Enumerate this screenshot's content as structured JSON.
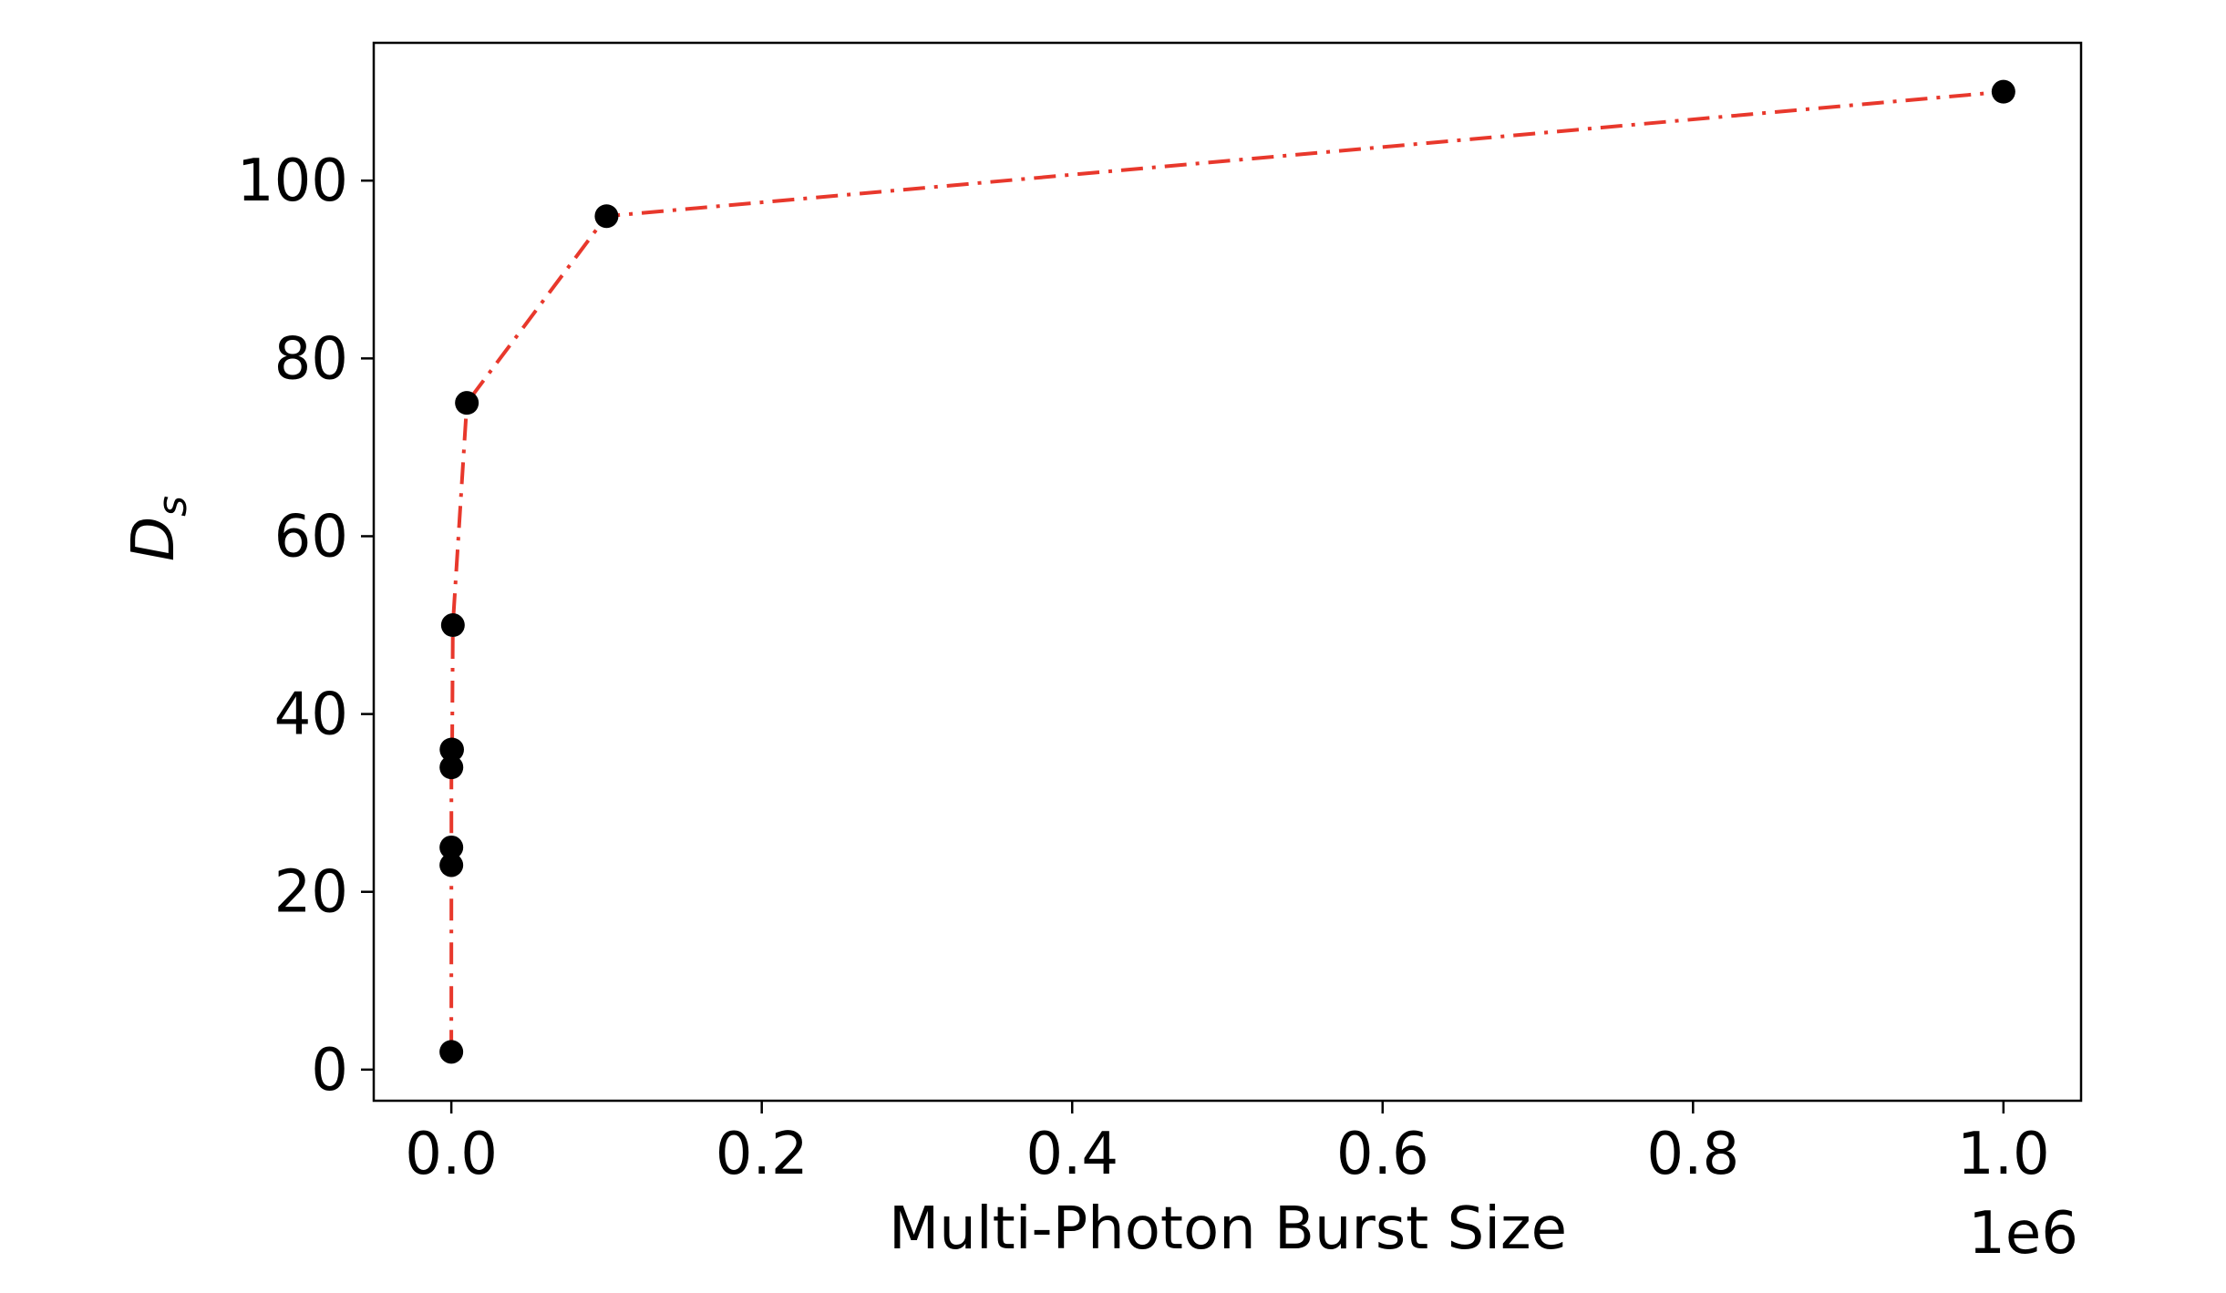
{
  "chart_data": {
    "type": "line",
    "title": "",
    "xlabel": "Multi-Photon Burst Size",
    "ylabel": "D",
    "ylabel_subscript": "s",
    "x_offset_label": "1e6",
    "xlim": [
      -0.05,
      1.05
    ],
    "ylim": [
      -3.5,
      115.5
    ],
    "x_ticks": [
      0.0,
      0.2,
      0.4,
      0.6,
      0.8,
      1.0
    ],
    "x_tick_labels": [
      "0.0",
      "0.2",
      "0.4",
      "0.6",
      "0.8",
      "1.0"
    ],
    "y_ticks": [
      0,
      20,
      40,
      60,
      80,
      100
    ],
    "y_tick_labels": [
      "0",
      "20",
      "40",
      "60",
      "80",
      "100"
    ],
    "grid": false,
    "series": [
      {
        "x": [
          1e-07,
          1e-05,
          2e-05,
          5e-05,
          0.0001,
          0.0005,
          0.001,
          0.01,
          0.1,
          1.0
        ],
        "values": [
          2,
          23,
          25,
          34,
          36,
          36,
          50,
          75,
          96,
          110
        ],
        "line_color": "#e8382c",
        "line_style": "dash-dot",
        "marker_color": "#000000"
      }
    ]
  }
}
